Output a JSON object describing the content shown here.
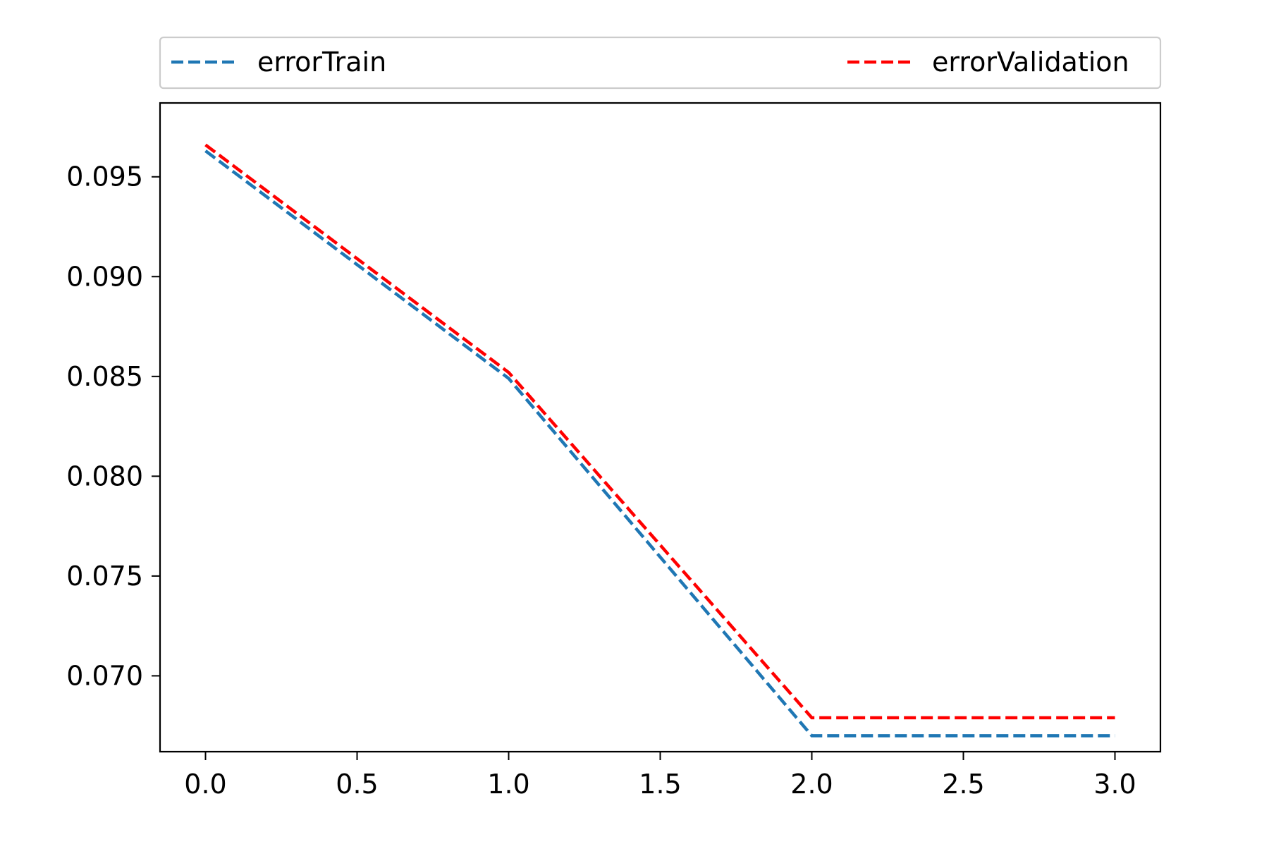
{
  "chart_data": {
    "type": "line",
    "title": "",
    "xlabel": "",
    "ylabel": "",
    "x": [
      0,
      1,
      2,
      3
    ],
    "series": [
      {
        "name": "errorTrain",
        "values": [
          0.0963,
          0.0849,
          0.067,
          0.067
        ],
        "color": "#1f77b4",
        "linestyle": "dashed"
      },
      {
        "name": "errorValidation",
        "values": [
          0.0966,
          0.0852,
          0.0679,
          0.0679
        ],
        "color": "#ff0000",
        "linestyle": "dashed"
      }
    ],
    "xlim": [
      -0.15,
      3.15
    ],
    "ylim": [
      0.0662,
      0.0987
    ],
    "xticks": [
      0.0,
      0.5,
      1.0,
      1.5,
      2.0,
      2.5,
      3.0
    ],
    "xtick_labels": [
      "0.0",
      "0.5",
      "1.0",
      "1.5",
      "2.0",
      "2.5",
      "3.0"
    ],
    "yticks": [
      0.07,
      0.075,
      0.08,
      0.085,
      0.09,
      0.095
    ],
    "ytick_labels": [
      "0.070",
      "0.075",
      "0.080",
      "0.085",
      "0.090",
      "0.095"
    ],
    "grid": false,
    "legend": {
      "placement": "top-outside",
      "entries": [
        "errorTrain",
        "errorValidation"
      ]
    }
  }
}
